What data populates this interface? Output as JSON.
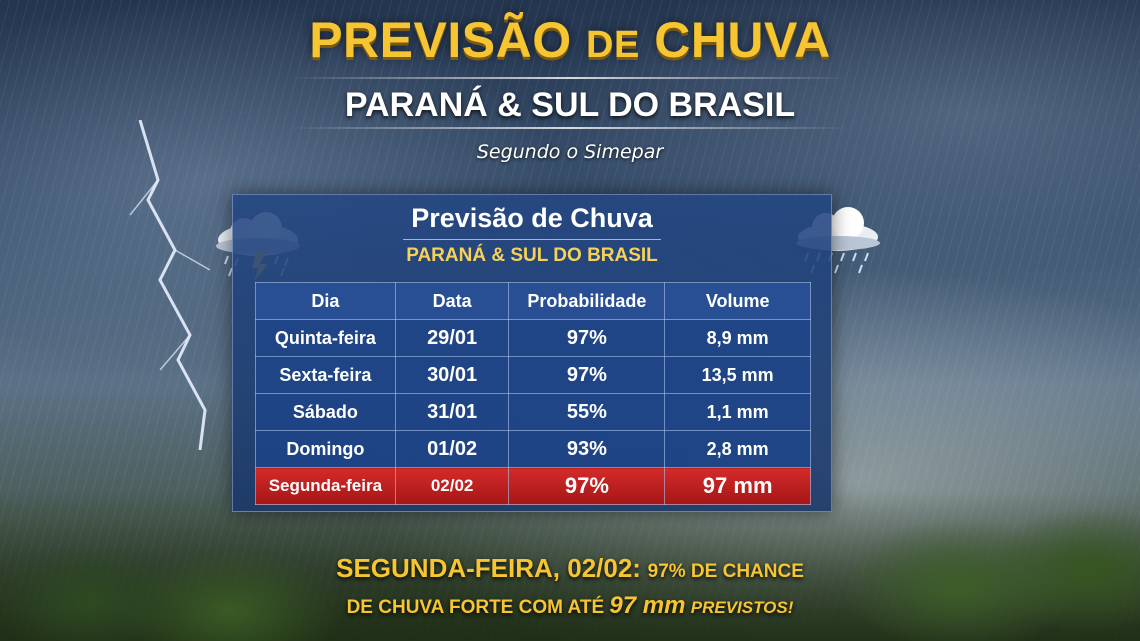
{
  "header": {
    "title_part1": "PREVISÃO",
    "title_part2": "DE",
    "title_part3": "CHUVA",
    "subtitle": "PARANÁ & SUL DO BRASIL",
    "source": "Segundo o Simepar"
  },
  "panel": {
    "title": "Previsão de Chuva",
    "subtitle": "PARANÁ & SUL DO BRASIL"
  },
  "table": {
    "headers": [
      "Dia",
      "Data",
      "Probabilidade",
      "Volume"
    ],
    "rows": [
      {
        "dia": "Quinta-feira",
        "data": "29/01",
        "prob": "97%",
        "volume": "8,9 mm"
      },
      {
        "dia": "Sexta-feira",
        "data": "30/01",
        "prob": "97%",
        "volume": "13,5 mm"
      },
      {
        "dia": "Sábado",
        "data": "31/01",
        "prob": "55%",
        "volume": "1,1 mm"
      },
      {
        "dia": "Domingo",
        "data": "01/02",
        "prob": "93%",
        "volume": "2,8 mm"
      },
      {
        "dia": "Segunda-feira",
        "data": "02/02",
        "prob": "97%",
        "volume": "97 mm"
      }
    ],
    "highlighted_row": 4
  },
  "banner": {
    "line1_lead": "SEGUNDA-FEIRA, 02/02:",
    "line1_rest": "97% DE CHANCE",
    "line2_start": "DE CHUVA FORTE COM ATÉ",
    "line2_value": "97 mm",
    "line2_end": "PREVISTOS!"
  },
  "colors": {
    "gold": "#f7c531",
    "panel_blue": "#234682",
    "highlight_red": "#c21f1f"
  },
  "icons": [
    "storm-cloud-icon",
    "rain-cloud-icon",
    "lightning-bolt"
  ]
}
